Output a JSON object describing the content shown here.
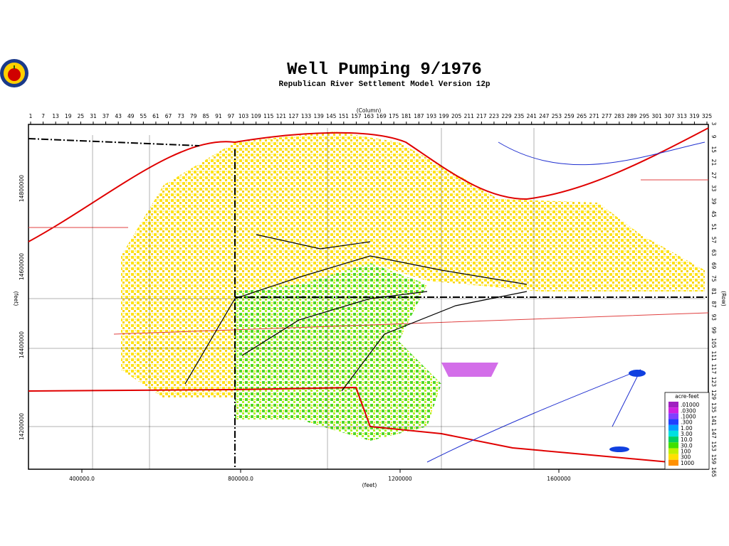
{
  "title": "Well Pumping  9/1976",
  "subtitle": "Republican River Settlement Model Version 12p",
  "top_axis": {
    "label": "(Column)",
    "ticks": [
      "1",
      "7",
      "13",
      "19",
      "25",
      "31",
      "37",
      "43",
      "49",
      "55",
      "61",
      "67",
      "73",
      "79",
      "85",
      "91",
      "97",
      "103",
      "109",
      "115",
      "121",
      "127",
      "133",
      "139",
      "145",
      "151",
      "157",
      "163",
      "169",
      "175",
      "181",
      "187",
      "193",
      "199",
      "205",
      "211",
      "217",
      "223",
      "229",
      "235",
      "241",
      "247",
      "253",
      "259",
      "265",
      "271",
      "277",
      "283",
      "289",
      "295",
      "301",
      "307",
      "313",
      "319",
      "325"
    ]
  },
  "right_axis": {
    "label": "(Row)",
    "ticks": [
      "3",
      "9",
      "15",
      "21",
      "27",
      "33",
      "39",
      "45",
      "51",
      "57",
      "63",
      "69",
      "75",
      "81",
      "87",
      "93",
      "99",
      "105",
      "111",
      "117",
      "123",
      "129",
      "135",
      "141",
      "147",
      "153",
      "159",
      "165"
    ]
  },
  "bottom_axis": {
    "label": "(feet)",
    "ticks": [
      "400000.0",
      "800000.0",
      "1200000",
      "1600000"
    ]
  },
  "left_axis": {
    "label": "(feet)",
    "ticks": [
      "14800000",
      "14600000",
      "14400000",
      "14200000"
    ]
  },
  "legend": {
    "title": "acre-feet",
    "items": [
      {
        "label": ".01000",
        "color": "#a020c0"
      },
      {
        "label": ".0300",
        "color": "#d020e0"
      },
      {
        "label": ".1000",
        "color": "#8040ff"
      },
      {
        "label": ".300",
        "color": "#2040ff"
      },
      {
        "label": "1.00",
        "color": "#00a0ff"
      },
      {
        "label": "3.00",
        "color": "#00e0e0"
      },
      {
        "label": "10.0",
        "color": "#00d060"
      },
      {
        "label": "30.0",
        "color": "#40e000"
      },
      {
        "label": "100",
        "color": "#c0f000"
      },
      {
        "label": "300",
        "color": "#ffe000"
      },
      {
        "label": "1000",
        "color": "#ff9000"
      }
    ]
  }
}
